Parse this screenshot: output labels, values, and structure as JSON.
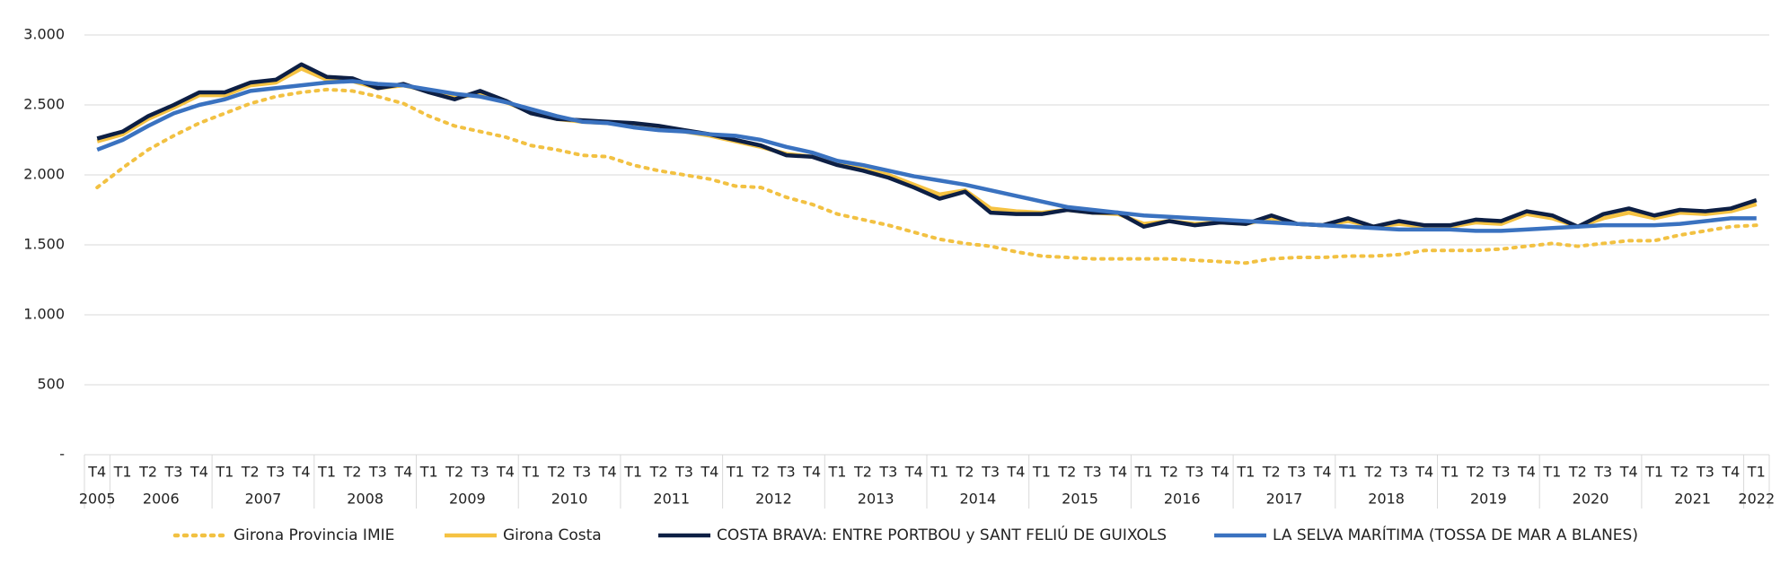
{
  "chart_data": {
    "type": "line",
    "categories": [
      "T4",
      "T1",
      "T2",
      "T3",
      "T4",
      "T1",
      "T2",
      "T3",
      "T4",
      "T1",
      "T2",
      "T3",
      "T4",
      "T1",
      "T2",
      "T3",
      "T4",
      "T1",
      "T2",
      "T3",
      "T4",
      "T1",
      "T2",
      "T3",
      "T4",
      "T1",
      "T2",
      "T3",
      "T4",
      "T1",
      "T2",
      "T3",
      "T4",
      "T1",
      "T2",
      "T3",
      "T4",
      "T1",
      "T2",
      "T3",
      "T4",
      "T1",
      "T2",
      "T3",
      "T4",
      "T1",
      "T2",
      "T3",
      "T4",
      "T1",
      "T2",
      "T3",
      "T4",
      "T1",
      "T2",
      "T3",
      "T4",
      "T1",
      "T2",
      "T3",
      "T4",
      "T1",
      "T2",
      "T3",
      "T4",
      "T1"
    ],
    "year_labels": [
      "2005",
      "2006",
      "2007",
      "2008",
      "2009",
      "2010",
      "2011",
      "2012",
      "2013",
      "2014",
      "2015",
      "2016",
      "2017",
      "2018",
      "2019",
      "2020",
      "2021",
      "2022"
    ],
    "ylim": [
      0,
      3000
    ],
    "yticks": [
      {
        "value": 0,
        "label": "-"
      },
      500,
      {
        "value": 1000,
        "label": "1.000"
      },
      {
        "value": 1500,
        "label": "1.500"
      },
      {
        "value": 2000,
        "label": "2.000"
      },
      {
        "value": 2500,
        "label": "2.500"
      },
      {
        "value": 3000,
        "label": "3.000"
      }
    ],
    "grid": true,
    "legend": "bottom",
    "series": [
      {
        "name": "Girona Provincia IMIE",
        "color": "#f2c142",
        "line_style": "dotted",
        "values": [
          1910,
          2050,
          2180,
          2280,
          2370,
          2440,
          2510,
          2560,
          2590,
          2610,
          2600,
          2560,
          2510,
          2420,
          2350,
          2310,
          2270,
          2210,
          2180,
          2140,
          2130,
          2070,
          2030,
          2000,
          1970,
          1920,
          1910,
          1840,
          1790,
          1720,
          1680,
          1640,
          1590,
          1540,
          1510,
          1490,
          1450,
          1420,
          1410,
          1400,
          1400,
          1400,
          1400,
          1390,
          1380,
          1370,
          1400,
          1410,
          1410,
          1420,
          1420,
          1430,
          1460,
          1460,
          1460,
          1470,
          1490,
          1510,
          1490,
          1510,
          1530,
          1530,
          1570,
          1600,
          1630,
          1640
        ]
      },
      {
        "name": "Girona Costa",
        "color": "#f5c242",
        "line_style": "solid",
        "values": [
          2240,
          2290,
          2400,
          2480,
          2570,
          2570,
          2640,
          2660,
          2760,
          2680,
          2670,
          2620,
          2640,
          2600,
          2550,
          2580,
          2520,
          2450,
          2400,
          2380,
          2370,
          2360,
          2340,
          2310,
          2280,
          2240,
          2200,
          2150,
          2130,
          2080,
          2040,
          2000,
          1930,
          1860,
          1890,
          1760,
          1740,
          1730,
          1750,
          1730,
          1720,
          1650,
          1670,
          1650,
          1660,
          1650,
          1690,
          1650,
          1640,
          1670,
          1630,
          1650,
          1630,
          1630,
          1660,
          1650,
          1720,
          1690,
          1630,
          1690,
          1730,
          1690,
          1730,
          1720,
          1740,
          1790
        ]
      },
      {
        "name": "COSTA BRAVA: ENTRE PORTBOU y SANT FELIÚ DE GUIXOLS",
        "color": "#0d1f44",
        "line_style": "solid",
        "values": [
          2260,
          2310,
          2420,
          2500,
          2590,
          2590,
          2660,
          2680,
          2790,
          2700,
          2690,
          2620,
          2650,
          2590,
          2540,
          2600,
          2530,
          2440,
          2400,
          2390,
          2380,
          2370,
          2350,
          2320,
          2290,
          2250,
          2210,
          2140,
          2130,
          2070,
          2030,
          1980,
          1910,
          1830,
          1880,
          1730,
          1720,
          1720,
          1750,
          1730,
          1730,
          1630,
          1670,
          1640,
          1660,
          1650,
          1710,
          1650,
          1640,
          1690,
          1630,
          1670,
          1640,
          1640,
          1680,
          1670,
          1740,
          1710,
          1630,
          1720,
          1760,
          1710,
          1750,
          1740,
          1760,
          1820
        ]
      },
      {
        "name": "LA SELVA MARÍTIMA (TOSSA DE MAR A BLANES)",
        "color": "#3a72c0",
        "line_style": "solid",
        "values": [
          2180,
          2250,
          2350,
          2440,
          2500,
          2540,
          2600,
          2620,
          2640,
          2660,
          2670,
          2650,
          2640,
          2610,
          2580,
          2560,
          2520,
          2470,
          2420,
          2380,
          2370,
          2340,
          2320,
          2310,
          2290,
          2280,
          2250,
          2200,
          2160,
          2100,
          2070,
          2030,
          1990,
          1960,
          1930,
          1890,
          1850,
          1810,
          1770,
          1750,
          1730,
          1710,
          1700,
          1690,
          1680,
          1670,
          1660,
          1650,
          1640,
          1630,
          1620,
          1610,
          1610,
          1610,
          1600,
          1600,
          1610,
          1620,
          1630,
          1640,
          1640,
          1640,
          1650,
          1670,
          1690,
          1690
        ]
      }
    ]
  }
}
